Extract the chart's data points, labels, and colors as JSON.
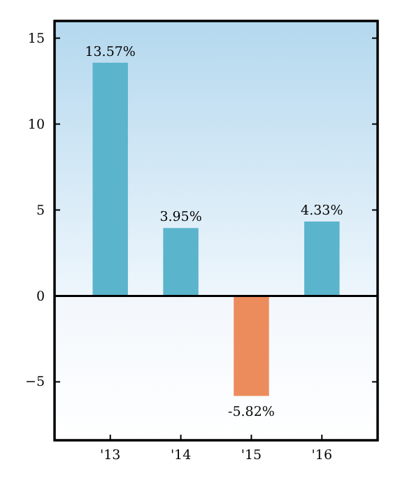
{
  "chart_data": {
    "type": "bar",
    "categories": [
      "'13",
      "'14",
      "'15",
      "'16"
    ],
    "values": [
      13.57,
      3.95,
      -5.82,
      4.33
    ],
    "colors": [
      "#5ab4cc",
      "#5ab4cc",
      "#ec8c5c",
      "#5ab4cc"
    ],
    "value_labels": [
      "13.57%",
      "3.95%",
      "-5.82%",
      "4.33%"
    ],
    "ylim": [
      -8.4,
      16
    ],
    "yticks": [
      {
        "value": -5,
        "label": "−5"
      },
      0,
      5,
      10,
      15
    ],
    "ref_lines": [
      {
        "axis": "y",
        "value": 0,
        "color": "#000000"
      }
    ],
    "grid": false
  }
}
